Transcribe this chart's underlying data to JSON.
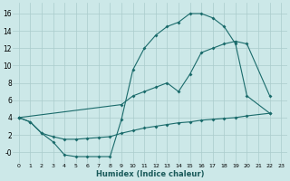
{
  "xlabel": "Humidex (Indice chaleur)",
  "background_color": "#cce8e8",
  "grid_color": "#aacccc",
  "line_color": "#1a6b6b",
  "xlim": [
    -0.5,
    23.5
  ],
  "ylim": [
    -1.2,
    17.2
  ],
  "xticks": [
    0,
    1,
    2,
    3,
    4,
    5,
    6,
    7,
    8,
    9,
    10,
    11,
    12,
    13,
    14,
    15,
    16,
    17,
    18,
    19,
    20,
    21,
    22,
    23
  ],
  "yticks": [
    0,
    2,
    4,
    6,
    8,
    10,
    12,
    14,
    16
  ],
  "ytick_labels": [
    "-0",
    "2",
    "4",
    "6",
    "8",
    "10",
    "12",
    "14",
    "16"
  ],
  "line1_x": [
    0,
    1,
    2,
    3,
    4,
    5,
    6,
    7,
    8,
    9,
    10,
    11,
    12,
    13,
    14,
    15,
    16,
    17,
    18,
    19,
    20,
    22
  ],
  "line1_y": [
    4.0,
    3.5,
    2.2,
    1.2,
    -0.3,
    -0.5,
    -0.5,
    -0.5,
    -0.5,
    3.8,
    9.5,
    12.0,
    13.5,
    14.5,
    15.0,
    16.0,
    16.0,
    15.5,
    14.5,
    12.5,
    6.5,
    4.5
  ],
  "line2_x": [
    0,
    9,
    10,
    11,
    12,
    13,
    14,
    15,
    16,
    17,
    18,
    19,
    20,
    22
  ],
  "line2_y": [
    4.0,
    5.5,
    6.5,
    7.0,
    7.5,
    8.0,
    7.0,
    9.0,
    11.5,
    12.0,
    12.5,
    12.8,
    12.5,
    6.5
  ],
  "line3_x": [
    0,
    1,
    2,
    3,
    4,
    5,
    6,
    7,
    8,
    9,
    10,
    11,
    12,
    13,
    14,
    15,
    16,
    17,
    18,
    19,
    20,
    22
  ],
  "line3_y": [
    4.0,
    3.5,
    2.2,
    1.8,
    1.5,
    1.5,
    1.6,
    1.7,
    1.8,
    2.2,
    2.5,
    2.8,
    3.0,
    3.2,
    3.4,
    3.5,
    3.7,
    3.8,
    3.9,
    4.0,
    4.2,
    4.5
  ]
}
